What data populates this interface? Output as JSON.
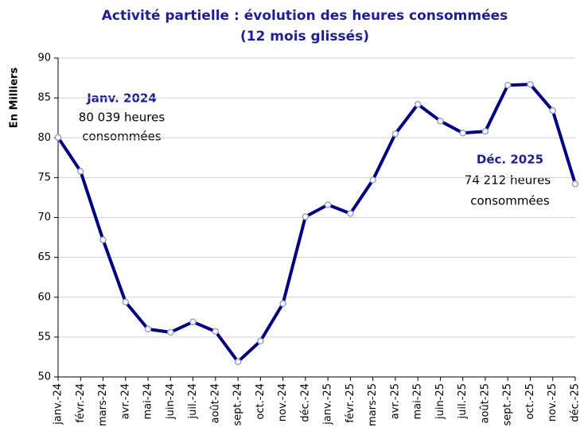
{
  "chart_data": {
    "type": "line",
    "title": [
      "Activité partielle : évolution des heures consommées",
      "(12 mois glissés)"
    ],
    "y_label": "En Milliers",
    "categories": [
      "janv.-24",
      "févr.-24",
      "mars-24",
      "avr.-24",
      "mai-24",
      "juin-24",
      "juil.-24",
      "août-24",
      "sept.-24",
      "oct.-24",
      "nov.-24",
      "déc.-24",
      "janv.-25",
      "févr.-25",
      "mars-25",
      "avr.-25",
      "mai-25",
      "juin-25",
      "juil.-25",
      "août-25",
      "sept.-25",
      "oct.-25",
      "nov.-25",
      "déc.-25"
    ],
    "series": [
      {
        "name": "Heures consommées",
        "color": "#000080",
        "values": [
          80.039,
          75.8,
          67.2,
          59.4,
          56.0,
          55.6,
          56.9,
          55.7,
          51.9,
          54.5,
          59.2,
          70.1,
          71.6,
          70.5,
          74.7,
          80.5,
          84.2,
          82.1,
          80.6,
          80.8,
          86.6,
          86.7,
          83.4,
          74.212
        ]
      }
    ],
    "ylim": [
      50,
      90
    ],
    "yticks": [
      50,
      55,
      60,
      65,
      70,
      75,
      80,
      85,
      90
    ],
    "grid": true,
    "annotations": [
      {
        "lines": [
          "Janv. 2024",
          "80 039 heures",
          "consommées"
        ]
      },
      {
        "lines": [
          "Déc. 2025",
          "74 212 heures",
          "consommées"
        ]
      }
    ]
  }
}
